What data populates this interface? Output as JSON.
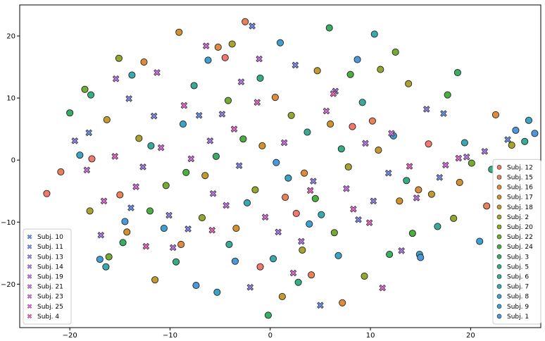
{
  "chart_data": {
    "type": "scatter",
    "title": "",
    "xlabel": "",
    "ylabel": "",
    "xlim": [
      -25,
      27
    ],
    "ylim": [
      -27,
      25
    ],
    "grid": false,
    "x_ticks": [
      -20,
      -10,
      0,
      10,
      20
    ],
    "y_ticks": [
      -20,
      -10,
      0,
      10,
      20
    ],
    "x_tick_labels": [
      "−20",
      "−10",
      "0",
      "10",
      "20"
    ],
    "y_tick_labels": [
      "−20",
      "−10",
      "0",
      "10",
      "20"
    ],
    "legends": [
      {
        "placement": "lower-left",
        "marker": "x",
        "entries": [
          "Subj. 10",
          "Subj. 11",
          "Subj. 13",
          "Subj. 14",
          "Subj. 19",
          "Subj. 21",
          "Subj. 23",
          "Subj. 25",
          "Subj. 4"
        ]
      },
      {
        "placement": "lower-right",
        "marker": "o",
        "entries": [
          "Subj. 12",
          "Subj. 15",
          "Subj. 16",
          "Subj. 17",
          "Subj. 18",
          "Subj. 2",
          "Subj. 20",
          "Subj. 22",
          "Subj. 24",
          "Subj. 3",
          "Subj. 5",
          "Subj. 6",
          "Subj. 7",
          "Subj. 8",
          "Subj. 9",
          "Subj. 1"
        ]
      }
    ],
    "colors": {
      "circle": "#3aa5b9",
      "x": "#d56be3"
    },
    "series": [
      {
        "name": "Subj. 12",
        "marker": "o",
        "color": "#f2776c",
        "points": [
          [
            -22.3,
            -5.4
          ],
          [
            2.6,
            -8.6
          ],
          [
            -4.5,
            16.5
          ],
          [
            8.2,
            5.4
          ],
          [
            -1,
            -17.2
          ],
          [
            15.8,
            2.6
          ],
          [
            -17.8,
            0.2
          ]
        ]
      },
      {
        "name": "Subj. 15",
        "marker": "o",
        "color": "#e8805a",
        "points": [
          [
            -20.9,
            -1.9
          ],
          [
            -2.5,
            22.3
          ],
          [
            10.2,
            6.3
          ],
          [
            1.5,
            -6
          ],
          [
            -15,
            -5.6
          ],
          [
            4.1,
            -18.5
          ],
          [
            21.6,
            -7.4
          ]
        ]
      },
      {
        "name": "Subj. 16",
        "marker": "o",
        "color": "#e08a3c",
        "points": [
          [
            -12.6,
            15.8
          ],
          [
            -5.2,
            18.2
          ],
          [
            3.4,
            -2.1
          ],
          [
            14.8,
            -4.8
          ],
          [
            -8.9,
            -13.6
          ],
          [
            0.5,
            10.1
          ],
          [
            22.5,
            7.3
          ],
          [
            7.2,
            -23
          ]
        ]
      },
      {
        "name": "Subj. 17",
        "marker": "o",
        "color": "#d1912f",
        "points": [
          [
            -9.1,
            20.6
          ],
          [
            -3.4,
            -11
          ],
          [
            6,
            5.8
          ],
          [
            -14.3,
            -11.6
          ],
          [
            12.9,
            -6.6
          ],
          [
            -0.8,
            2.3
          ],
          [
            18.9,
            -3.6
          ]
        ]
      },
      {
        "name": "Subj. 18",
        "marker": "o",
        "color": "#c19b2e",
        "points": [
          [
            -16.3,
            6.5
          ],
          [
            -6.5,
            -2.5
          ],
          [
            4.7,
            14.4
          ],
          [
            10.8,
            1.6
          ],
          [
            -11.5,
            -19.3
          ],
          [
            1.2,
            -22
          ],
          [
            16.1,
            -5.5
          ]
        ]
      },
      {
        "name": "Subj. 2",
        "marker": "o",
        "color": "#a9a22e",
        "points": [
          [
            -3.8,
            18.7
          ],
          [
            7.8,
            -1.1
          ],
          [
            -13.1,
            3.5
          ],
          [
            3.2,
            -14.5
          ],
          [
            -18,
            -8.2
          ],
          [
            13.8,
            12.3
          ],
          [
            24.1,
            2.4
          ]
        ]
      },
      {
        "name": "Subj. 20",
        "marker": "o",
        "color": "#92a72e",
        "points": [
          [
            -15.1,
            16.4
          ],
          [
            -6.8,
            -9.3
          ],
          [
            2.1,
            7.2
          ],
          [
            9.4,
            -18.7
          ],
          [
            -1.5,
            -4.8
          ],
          [
            18.3,
            -9.4
          ],
          [
            11,
            14.6
          ]
        ]
      },
      {
        "name": "Subj. 22",
        "marker": "o",
        "color": "#73ab33",
        "points": [
          [
            -18.5,
            11.4
          ],
          [
            -10.4,
            -4.1
          ],
          [
            6.4,
            -11.7
          ],
          [
            -4.2,
            9.6
          ],
          [
            12.5,
            17.4
          ],
          [
            20.1,
            -0.5
          ],
          [
            -16.1,
            -15.6
          ]
        ]
      },
      {
        "name": "Subj. 24",
        "marker": "o",
        "color": "#4aae40",
        "points": [
          [
            -12,
            -8.2
          ],
          [
            -2.7,
            3.4
          ],
          [
            8,
            13.8
          ],
          [
            -8.4,
            -2
          ],
          [
            4.5,
            -6.2
          ],
          [
            14.2,
            -11.8
          ],
          [
            17.7,
            10.5
          ]
        ]
      },
      {
        "name": "Subj. 3",
        "marker": "o",
        "color": "#37ae62",
        "points": [
          [
            -20,
            7.6
          ],
          [
            -14.7,
            -13.3
          ],
          [
            -5.4,
            0.6
          ],
          [
            5.9,
            21.3
          ],
          [
            11.9,
            -15.2
          ],
          [
            -0.2,
            -25
          ],
          [
            18.7,
            14.1
          ]
        ]
      },
      {
        "name": "Subj. 5",
        "marker": "o",
        "color": "#35ad80",
        "points": [
          [
            -17.9,
            10.5
          ],
          [
            -9.4,
            -16.4
          ],
          [
            -1,
            13.2
          ],
          [
            7.1,
            1.8
          ],
          [
            13.6,
            -3.3
          ],
          [
            22.1,
            -1.5
          ],
          [
            2.8,
            -19.7
          ]
        ]
      },
      {
        "name": "Subj. 6",
        "marker": "o",
        "color": "#37ab97",
        "points": [
          [
            -11.9,
            2.3
          ],
          [
            -4.1,
            -13.6
          ],
          [
            3.7,
            4.5
          ],
          [
            9.2,
            9.3
          ],
          [
            16.7,
            -10.7
          ],
          [
            -7.6,
            12
          ],
          [
            25.4,
            3
          ]
        ]
      },
      {
        "name": "Subj. 7",
        "marker": "o",
        "color": "#39a9ad",
        "points": [
          [
            -16.4,
            -17.2
          ],
          [
            -13.8,
            13.7
          ],
          [
            -2.3,
            -6.9
          ],
          [
            5.1,
            -8.8
          ],
          [
            10.4,
            20.3
          ],
          [
            19.4,
            2.8
          ],
          [
            0.3,
            -15.9
          ]
        ]
      },
      {
        "name": "Subj. 8",
        "marker": "o",
        "color": "#3aa5c2",
        "points": [
          [
            -19,
            0.8
          ],
          [
            -8.7,
            5.8
          ],
          [
            1.8,
            -2.9
          ],
          [
            6.8,
            -15.4
          ],
          [
            14.9,
            -15.2
          ],
          [
            -5.3,
            -21.3
          ],
          [
            25.8,
            6.4
          ]
        ]
      },
      {
        "name": "Subj. 9",
        "marker": "o",
        "color": "#3da0d1",
        "points": [
          [
            -17,
            -16
          ],
          [
            -6.2,
            16.1
          ],
          [
            3.9,
            -10.3
          ],
          [
            12.3,
            3.9
          ],
          [
            20.9,
            -13.1
          ],
          [
            -10.6,
            -11
          ],
          [
            1,
            18.9
          ]
        ]
      },
      {
        "name": "Subj. 1",
        "marker": "o",
        "color": "#4a99de",
        "points": [
          [
            -14.5,
            -9.9
          ],
          [
            -3.5,
            -16.3
          ],
          [
            0.6,
            -0.4
          ],
          [
            8.7,
            16.2
          ],
          [
            15,
            -15.7
          ],
          [
            -7.4,
            -20.2
          ],
          [
            26.4,
            4.3
          ],
          [
            24.5,
            4.8
          ]
        ]
      },
      {
        "name": "Subj. 10",
        "marker": "x",
        "color": "#6c8fe6",
        "points": [
          [
            -18.1,
            4.4
          ],
          [
            -13.9,
            -7.7
          ],
          [
            -7.1,
            7.2
          ],
          [
            -1.8,
            21.6
          ],
          [
            5,
            -23.4
          ],
          [
            11.8,
            -2.1
          ],
          [
            17.3,
            7.5
          ],
          [
            23.7,
            3.3
          ]
        ]
      },
      {
        "name": "Subj. 11",
        "marker": "x",
        "color": "#7f89e8",
        "points": [
          [
            -14.1,
            9.9
          ],
          [
            -8.2,
            -11.1
          ],
          [
            -3.1,
            -0.9
          ],
          [
            2.5,
            15.3
          ],
          [
            8.8,
            -9.6
          ],
          [
            16.9,
            -2.8
          ],
          [
            -11.6,
            7.1
          ]
        ]
      },
      {
        "name": "Subj. 13",
        "marker": "x",
        "color": "#9482e8",
        "points": [
          [
            -19.5,
            3.1
          ],
          [
            -10.1,
            -8.9
          ],
          [
            -4.8,
            7.4
          ],
          [
            4.3,
            -3.4
          ],
          [
            10.3,
            -6.6
          ],
          [
            15.6,
            8.2
          ],
          [
            -2,
            -20.5
          ]
        ]
      },
      {
        "name": "Subj. 14",
        "marker": "x",
        "color": "#a67ce7",
        "points": [
          [
            -16.9,
            -12.1
          ],
          [
            -12.7,
            -1.1
          ],
          [
            -6,
            3.1
          ],
          [
            0.8,
            -11.6
          ],
          [
            6.5,
            11.1
          ],
          [
            21.4,
            1.4
          ],
          [
            13.1,
            -14.6
          ]
        ]
      },
      {
        "name": "Subj. 19",
        "marker": "x",
        "color": "#b977e6",
        "points": [
          [
            -15.4,
            13.1
          ],
          [
            -9.7,
            -14.1
          ],
          [
            -2.9,
            12.6
          ],
          [
            3.1,
            -13.1
          ],
          [
            9.5,
            2.7
          ],
          [
            19.6,
            0.5
          ],
          [
            -5.7,
            -5.4
          ]
        ]
      },
      {
        "name": "Subj. 21",
        "marker": "x",
        "color": "#c972e4",
        "points": [
          [
            -18.3,
            -1.6
          ],
          [
            -11.3,
            14.1
          ],
          [
            -4.4,
            -7.3
          ],
          [
            1.4,
            2.8
          ],
          [
            7.6,
            -4.6
          ],
          [
            14.6,
            -6.1
          ],
          [
            -1.1,
            16.3
          ],
          [
            23.2,
            -2.4
          ]
        ]
      },
      {
        "name": "Subj. 23",
        "marker": "x",
        "color": "#d66ede",
        "points": [
          [
            -13.4,
            -4.3
          ],
          [
            -7.9,
            0.2
          ],
          [
            -0.5,
            -9.2
          ],
          [
            5.6,
            7.9
          ],
          [
            12.1,
            4.3
          ],
          [
            17.5,
            -0.8
          ],
          [
            -6.4,
            18.4
          ]
        ]
      },
      {
        "name": "Subj. 25",
        "marker": "x",
        "color": "#e16ad2",
        "points": [
          [
            -16.6,
            -6.6
          ],
          [
            -10.9,
            2
          ],
          [
            -3.6,
            5
          ],
          [
            2.3,
            -18.2
          ],
          [
            8.3,
            -7.9
          ],
          [
            18.8,
            0.3
          ],
          [
            -8.6,
            8.8
          ],
          [
            11.2,
            -20.6
          ]
        ]
      },
      {
        "name": "Subj. 4",
        "marker": "x",
        "color": "#e967c2",
        "points": [
          [
            -12.4,
            -13.9
          ],
          [
            -5.8,
            -11.3
          ],
          [
            -1.3,
            9.3
          ],
          [
            4,
            -4.9
          ],
          [
            6.3,
            10.7
          ],
          [
            13.9,
            -1
          ],
          [
            -15.5,
            0.6
          ],
          [
            9.9,
            -10.1
          ]
        ]
      }
    ]
  }
}
